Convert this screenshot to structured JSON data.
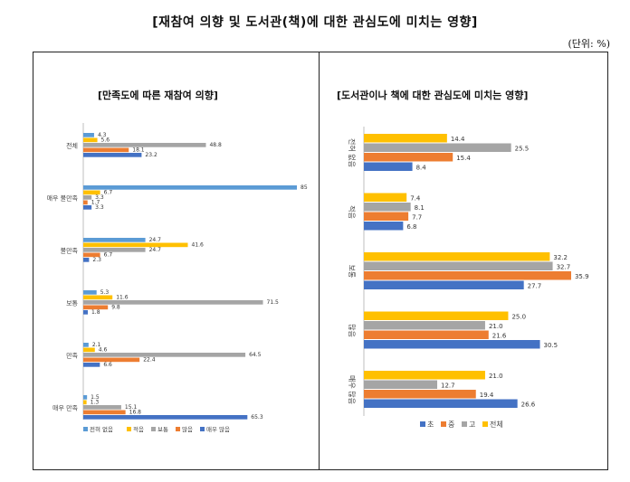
{
  "page": {
    "title": "[재참여 의향 및 도서관(책)에 대한 관심도에 미치는 영향]",
    "unit": "(단위: %)"
  },
  "chart_data": [
    {
      "type": "bar",
      "orientation": "horizontal",
      "title": "[만족도에 따른 재참여 의향]",
      "categories": [
        "전체",
        "매우 불만족",
        "불만족",
        "보통",
        "만족",
        "매우 만족"
      ],
      "series": [
        {
          "name": "전혀 없음",
          "color": "#5B9BD5",
          "values": [
            4.3,
            85.0,
            24.7,
            5.3,
            2.1,
            1.5
          ]
        },
        {
          "name": "적음",
          "color": "#FFC000",
          "values": [
            5.6,
            6.7,
            41.6,
            11.6,
            4.6,
            1.3
          ]
        },
        {
          "name": "보통",
          "color": "#A5A5A5",
          "values": [
            48.8,
            3.3,
            24.7,
            71.5,
            64.5,
            15.1
          ]
        },
        {
          "name": "많음",
          "color": "#ED7D31",
          "values": [
            18.1,
            1.7,
            6.7,
            9.8,
            22.4,
            16.8
          ]
        },
        {
          "name": "매우 많음",
          "color": "#4472C4",
          "values": [
            23.2,
            3.3,
            2.3,
            1.8,
            6.6,
            65.3
          ]
        }
      ],
      "xlim": [
        0,
        85
      ],
      "legend": "bottom"
    },
    {
      "type": "bar",
      "orientation": "horizontal",
      "title": "[도서관이나 책에 대한 관심도에 미치는 영향]",
      "categories": [
        "전혀 없음",
        "적음",
        "보통",
        "많음",
        "매우 많음"
      ],
      "series": [
        {
          "name": "전체",
          "color": "#FFC000",
          "values": [
            14.4,
            7.4,
            32.2,
            25.0,
            21.0
          ]
        },
        {
          "name": "고",
          "color": "#A5A5A5",
          "values": [
            25.5,
            8.1,
            32.7,
            21.0,
            12.7
          ]
        },
        {
          "name": "중",
          "color": "#ED7D31",
          "values": [
            15.4,
            7.7,
            35.9,
            21.6,
            19.4
          ]
        },
        {
          "name": "초",
          "color": "#4472C4",
          "values": [
            8.4,
            6.8,
            27.7,
            30.5,
            26.6
          ]
        }
      ],
      "legend_order": [
        "초",
        "중",
        "고",
        "전체"
      ],
      "xlim": [
        0,
        37
      ],
      "legend": "bottom"
    }
  ]
}
